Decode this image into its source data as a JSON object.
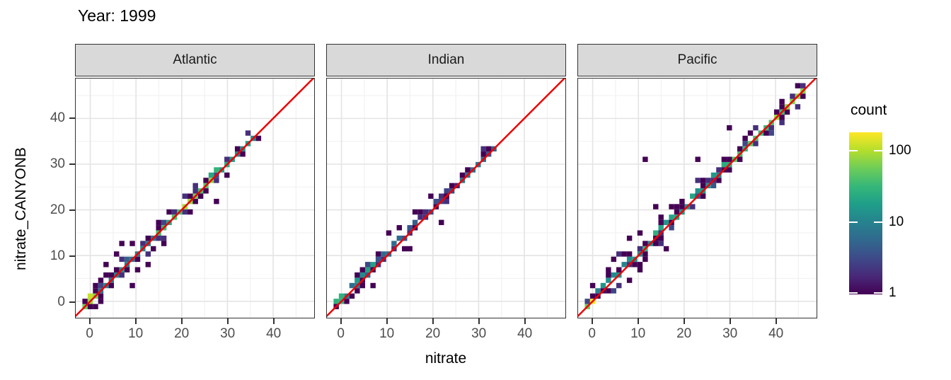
{
  "title": "Year: 1999",
  "theme": {
    "background": "#FFFFFF",
    "strip_bg": "#D9D9D9",
    "strip_border": "#333333",
    "panel_border": "#333333",
    "grid_major": "#E4E4E4",
    "grid_minor": "#F2F2F2",
    "tick_color": "#333333",
    "tick_label_color": "#4D4D4D",
    "title_color": "#000000"
  },
  "chart_data": {
    "type": "heatmap",
    "subtype": "bin2d-faceted-scatter",
    "title": "Year: 1999",
    "xlabel": "nitrate",
    "ylabel": "nitrate_CANYONB",
    "facets": [
      "Atlantic",
      "Indian",
      "Pacific"
    ],
    "x_ticks": [
      0,
      10,
      20,
      30,
      40
    ],
    "y_ticks": [
      0,
      10,
      20,
      30,
      40
    ],
    "minor_ticks": [
      5,
      15,
      25,
      35,
      45
    ],
    "xlim": [
      -3.2,
      49.0
    ],
    "ylim": [
      -3.6,
      48.7
    ],
    "grid": "major+minor",
    "identity_line": {
      "color": "#EE0000",
      "slope": 1,
      "intercept": 0,
      "width": 2.5
    },
    "legend": {
      "title": "count",
      "position": "right",
      "scale": "log10",
      "tick_labels": [
        "100",
        "10",
        "1"
      ],
      "tick_values": [
        100,
        10,
        1
      ],
      "min_count": 1,
      "max_count": 180
    },
    "colors": {
      "viridis": [
        "#440154",
        "#482878",
        "#3E4A89",
        "#31688E",
        "#26828E",
        "#1F9E89",
        "#35B779",
        "#6DCD59",
        "#B4DE2C",
        "#FDE725"
      ]
    },
    "bin_size": 1.15,
    "seed": 1999,
    "panels": [
      {
        "name": "Atlantic",
        "diag_range": [
          -0.6,
          36.6
        ],
        "segments": [
          {
            "from": -0.6,
            "to": 2.3,
            "core": 50,
            "spread": 1.5,
            "density": 3.0,
            "bias": 0
          },
          {
            "from": 2.3,
            "to": 8.0,
            "core": 9,
            "spread": 2.1,
            "density": 2.6,
            "bias": 0.2
          },
          {
            "from": 8.0,
            "to": 15.0,
            "core": 7,
            "spread": 1.9,
            "density": 2.2,
            "bias": 0.2
          },
          {
            "from": 15.0,
            "to": 21.0,
            "core": 28,
            "spread": 1.3,
            "density": 2.0,
            "bias": 0
          },
          {
            "from": 21.0,
            "to": 27.0,
            "core": 48,
            "spread": 1.3,
            "density": 2.0,
            "bias": 0
          },
          {
            "from": 27.0,
            "to": 31.0,
            "core": 20,
            "spread": 1.2,
            "density": 1.6,
            "bias": 0
          },
          {
            "from": 31.0,
            "to": 36.6,
            "core": 13,
            "spread": 1.7,
            "density": 2.2,
            "bias": 0
          }
        ],
        "hot_bins": [
          [
            0.3,
            0.6,
            115
          ]
        ],
        "outliers": [
          [
            7.3,
            13.2
          ],
          [
            9.3,
            12.9
          ],
          [
            6.2,
            10.9
          ],
          [
            27.7,
            22.2
          ],
          [
            8.9,
            2.9
          ],
          [
            12.6,
            8.3
          ],
          [
            16.5,
            12.9
          ],
          [
            4.0,
            7.6
          ]
        ]
      },
      {
        "name": "Indian",
        "diag_range": [
          -0.6,
          33.6
        ],
        "segments": [
          {
            "from": -0.6,
            "to": 1.5,
            "core": 22,
            "spread": 0.9,
            "density": 1.6,
            "bias": 0.2
          },
          {
            "from": 1.5,
            "to": 4.0,
            "core": 6,
            "spread": 1.1,
            "density": 1.6,
            "bias": 0.3
          },
          {
            "from": 4.0,
            "to": 8.5,
            "core": 13,
            "spread": 2.2,
            "density": 3.2,
            "bias": 0.8
          },
          {
            "from": 8.5,
            "to": 14.0,
            "core": 4,
            "spread": 1.5,
            "density": 1.6,
            "bias": 0.4
          },
          {
            "from": 14.0,
            "to": 26.0,
            "core": 2,
            "spread": 1.2,
            "density": 1.4,
            "bias": 0.7
          },
          {
            "from": 26.0,
            "to": 33.6,
            "core": 5,
            "spread": 0.9,
            "density": 1.2,
            "bias": 0.4
          }
        ],
        "hot_bins": [
          [
            0.2,
            0.8,
            28
          ]
        ],
        "outliers": [
          [
            10.6,
            14.6
          ],
          [
            12.9,
            16.2
          ],
          [
            16.3,
            19.4
          ],
          [
            21.3,
            17.7
          ],
          [
            6.9,
            3.4
          ],
          [
            19.9,
            23.3
          ],
          [
            14.9,
            11.4
          ]
        ]
      },
      {
        "name": "Pacific",
        "diag_range": [
          -0.6,
          46.2
        ],
        "segments": [
          {
            "from": -0.6,
            "to": 1.5,
            "core": 75,
            "spread": 1.0,
            "density": 2.0,
            "bias": 0
          },
          {
            "from": 1.5,
            "to": 6.0,
            "core": 11,
            "spread": 1.9,
            "density": 2.6,
            "bias": 0.3
          },
          {
            "from": 6.0,
            "to": 12.0,
            "core": 9,
            "spread": 2.7,
            "density": 3.4,
            "bias": 0.6
          },
          {
            "from": 12.0,
            "to": 20.0,
            "core": 14,
            "spread": 2.1,
            "density": 3.0,
            "bias": 0.2
          },
          {
            "from": 20.0,
            "to": 30.0,
            "core": 16,
            "spread": 1.6,
            "density": 2.4,
            "bias": 0
          },
          {
            "from": 30.0,
            "to": 38.0,
            "core": 30,
            "spread": 1.5,
            "density": 2.0,
            "bias": 0
          },
          {
            "from": 38.0,
            "to": 46.2,
            "core": 48,
            "spread": 1.6,
            "density": 2.6,
            "bias": 0
          }
        ],
        "hot_bins": [
          [
            0.2,
            0.3,
            130
          ]
        ],
        "outliers": [
          [
            29.4,
            38.3
          ],
          [
            11.3,
            30.6
          ],
          [
            23.5,
            31.6
          ],
          [
            13.8,
            20.9
          ],
          [
            4.9,
            9.3
          ],
          [
            16.5,
            11.0
          ],
          [
            8.2,
            14.2
          ],
          [
            3.2,
            7.4
          ]
        ]
      }
    ]
  }
}
